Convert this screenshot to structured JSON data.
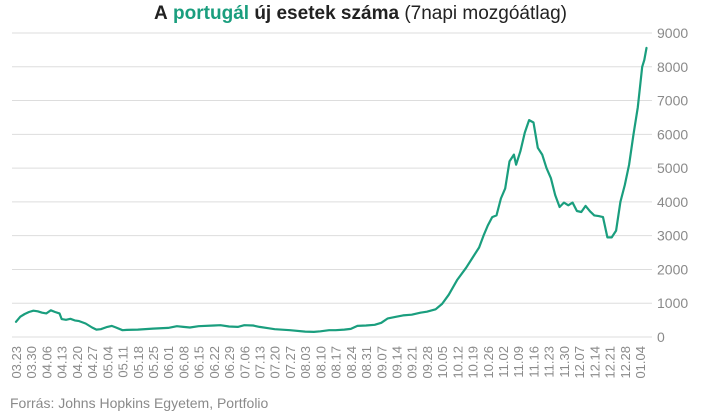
{
  "title": {
    "prefix": "A",
    "highlight": "portugál",
    "bold_rest": "új esetek száma",
    "normal_rest": "(7napi mozgóátlag)"
  },
  "source": "Forrás: Johns Hopkins Egyetem, Portfolio",
  "colors": {
    "line": "#1a9e7e",
    "highlight": "#1a9e7e",
    "grid": "#dddddd",
    "tick_text": "#8a8a8a",
    "title_text": "#222222"
  },
  "chart_data": {
    "type": "line",
    "title": "A portugál új esetek száma (7napi mozgóátlag)",
    "xlabel": "",
    "ylabel": "",
    "ylim": [
      0,
      9000
    ],
    "yticks": [
      0,
      1000,
      2000,
      3000,
      4000,
      5000,
      6000,
      7000,
      8000,
      9000
    ],
    "y_axis_side": "right",
    "grid": true,
    "legend": "none",
    "x_tick_labels": [
      "03.23",
      "03.30",
      "04.06",
      "04.13",
      "04.20",
      "04.27",
      "05.04",
      "05.11",
      "05.18",
      "05.25",
      "06.01",
      "06.08",
      "06.15",
      "06.22",
      "06.29",
      "07.06",
      "07.13",
      "07.20",
      "07.27",
      "08.03",
      "08.10",
      "08.17",
      "08.24",
      "08.31",
      "09.07",
      "09.14",
      "09.21",
      "09.28",
      "10.05",
      "10.12",
      "10.19",
      "10.26",
      "11.02",
      "11.09",
      "11.16",
      "11.23",
      "11.30",
      "12.07",
      "12.14",
      "12.21",
      "12.28",
      "01.04"
    ],
    "series": [
      {
        "values": [
          {
            "x": "03.23",
            "y": 450
          },
          {
            "x": "03.25",
            "y": 600
          },
          {
            "x": "03.27",
            "y": 680
          },
          {
            "x": "03.29",
            "y": 740
          },
          {
            "x": "03.31",
            "y": 780
          },
          {
            "x": "04.02",
            "y": 760
          },
          {
            "x": "04.04",
            "y": 720
          },
          {
            "x": "04.06",
            "y": 700
          },
          {
            "x": "04.08",
            "y": 790
          },
          {
            "x": "04.10",
            "y": 740
          },
          {
            "x": "04.12",
            "y": 700
          },
          {
            "x": "04.13",
            "y": 530
          },
          {
            "x": "04.15",
            "y": 510
          },
          {
            "x": "04.17",
            "y": 540
          },
          {
            "x": "04.19",
            "y": 490
          },
          {
            "x": "04.21",
            "y": 470
          },
          {
            "x": "04.24",
            "y": 400
          },
          {
            "x": "04.27",
            "y": 280
          },
          {
            "x": "04.29",
            "y": 220
          },
          {
            "x": "05.01",
            "y": 230
          },
          {
            "x": "05.04",
            "y": 300
          },
          {
            "x": "05.06",
            "y": 330
          },
          {
            "x": "05.08",
            "y": 280
          },
          {
            "x": "05.11",
            "y": 200
          },
          {
            "x": "05.13",
            "y": 210
          },
          {
            "x": "05.18",
            "y": 220
          },
          {
            "x": "05.25",
            "y": 250
          },
          {
            "x": "06.01",
            "y": 270
          },
          {
            "x": "06.05",
            "y": 320
          },
          {
            "x": "06.08",
            "y": 300
          },
          {
            "x": "06.11",
            "y": 280
          },
          {
            "x": "06.15",
            "y": 320
          },
          {
            "x": "06.22",
            "y": 340
          },
          {
            "x": "06.25",
            "y": 350
          },
          {
            "x": "06.29",
            "y": 310
          },
          {
            "x": "07.03",
            "y": 300
          },
          {
            "x": "07.06",
            "y": 350
          },
          {
            "x": "07.10",
            "y": 340
          },
          {
            "x": "07.13",
            "y": 300
          },
          {
            "x": "07.17",
            "y": 260
          },
          {
            "x": "07.20",
            "y": 230
          },
          {
            "x": "07.27",
            "y": 200
          },
          {
            "x": "08.03",
            "y": 160
          },
          {
            "x": "08.07",
            "y": 150
          },
          {
            "x": "08.10",
            "y": 170
          },
          {
            "x": "08.14",
            "y": 200
          },
          {
            "x": "08.17",
            "y": 200
          },
          {
            "x": "08.21",
            "y": 220
          },
          {
            "x": "08.24",
            "y": 240
          },
          {
            "x": "08.27",
            "y": 330
          },
          {
            "x": "08.31",
            "y": 340
          },
          {
            "x": "09.04",
            "y": 360
          },
          {
            "x": "09.07",
            "y": 420
          },
          {
            "x": "09.10",
            "y": 550
          },
          {
            "x": "09.14",
            "y": 600
          },
          {
            "x": "09.17",
            "y": 640
          },
          {
            "x": "09.21",
            "y": 660
          },
          {
            "x": "09.25",
            "y": 720
          },
          {
            "x": "09.28",
            "y": 750
          },
          {
            "x": "10.02",
            "y": 820
          },
          {
            "x": "10.05",
            "y": 980
          },
          {
            "x": "10.08",
            "y": 1250
          },
          {
            "x": "10.12",
            "y": 1700
          },
          {
            "x": "10.16",
            "y": 2050
          },
          {
            "x": "10.19",
            "y": 2350
          },
          {
            "x": "10.22",
            "y": 2650
          },
          {
            "x": "10.24",
            "y": 3000
          },
          {
            "x": "10.26",
            "y": 3300
          },
          {
            "x": "10.28",
            "y": 3550
          },
          {
            "x": "10.30",
            "y": 3600
          },
          {
            "x": "11.01",
            "y": 4100
          },
          {
            "x": "11.03",
            "y": 4400
          },
          {
            "x": "11.05",
            "y": 5200
          },
          {
            "x": "11.07",
            "y": 5400
          },
          {
            "x": "11.08",
            "y": 5100
          },
          {
            "x": "11.10",
            "y": 5500
          },
          {
            "x": "11.12",
            "y": 6050
          },
          {
            "x": "11.14",
            "y": 6420
          },
          {
            "x": "11.16",
            "y": 6350
          },
          {
            "x": "11.18",
            "y": 5600
          },
          {
            "x": "11.20",
            "y": 5400
          },
          {
            "x": "11.22",
            "y": 5000
          },
          {
            "x": "11.24",
            "y": 4700
          },
          {
            "x": "11.26",
            "y": 4200
          },
          {
            "x": "11.28",
            "y": 3850
          },
          {
            "x": "11.30",
            "y": 3980
          },
          {
            "x": "12.02",
            "y": 3900
          },
          {
            "x": "12.04",
            "y": 3980
          },
          {
            "x": "12.06",
            "y": 3730
          },
          {
            "x": "12.08",
            "y": 3700
          },
          {
            "x": "12.10",
            "y": 3880
          },
          {
            "x": "12.12",
            "y": 3720
          },
          {
            "x": "12.14",
            "y": 3600
          },
          {
            "x": "12.16",
            "y": 3580
          },
          {
            "x": "12.18",
            "y": 3550
          },
          {
            "x": "12.20",
            "y": 2950
          },
          {
            "x": "12.22",
            "y": 2950
          },
          {
            "x": "12.24",
            "y": 3150
          },
          {
            "x": "12.26",
            "y": 4000
          },
          {
            "x": "12.28",
            "y": 4500
          },
          {
            "x": "12.30",
            "y": 5100
          },
          {
            "x": "01.01",
            "y": 6000
          },
          {
            "x": "01.03",
            "y": 6800
          },
          {
            "x": "01.05",
            "y": 8000
          },
          {
            "x": "01.06",
            "y": 8200
          },
          {
            "x": "01.07",
            "y": 8560
          }
        ]
      }
    ]
  }
}
